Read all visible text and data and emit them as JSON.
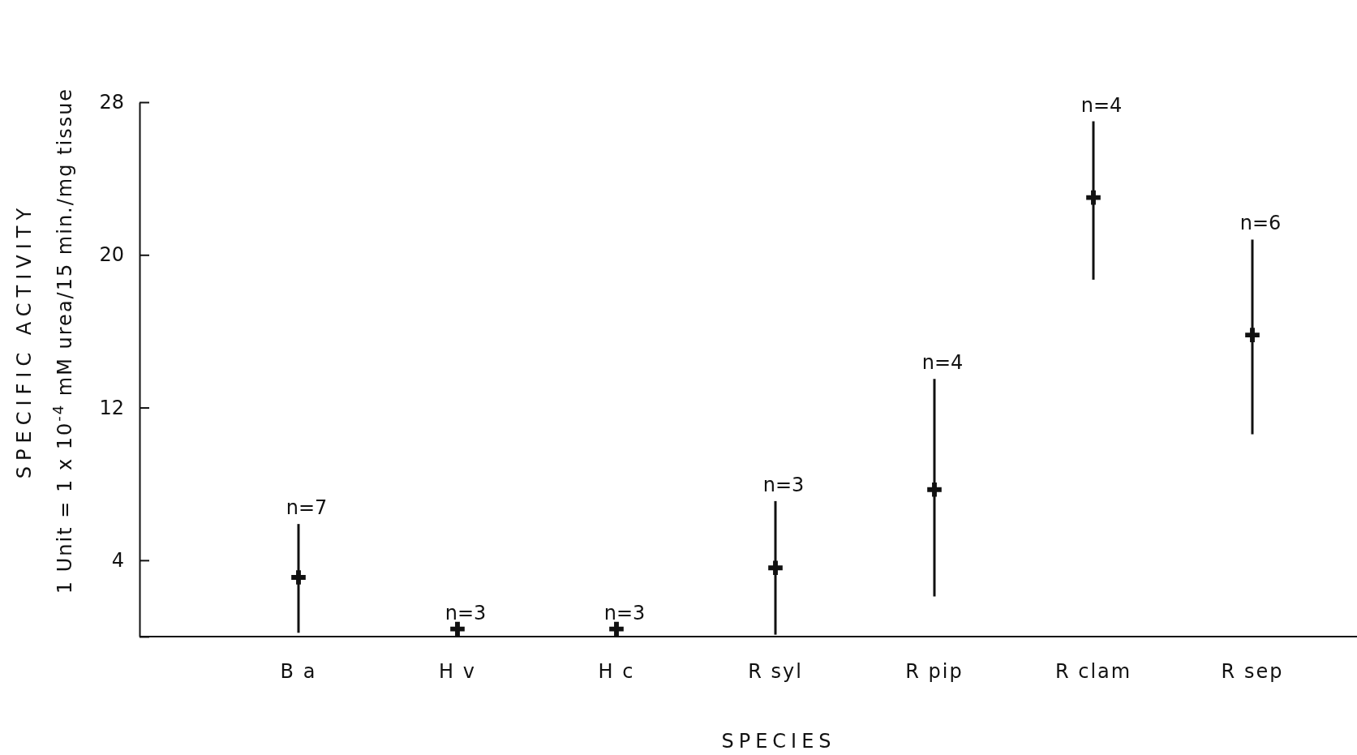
{
  "chart_data": {
    "type": "scatter",
    "xlabel": "SPECIES",
    "ylabel": "SPECIFIC ACTIVITY\n1 Unit = 1 x 10$^{-4}$ mM urea/15 min./mg tissue",
    "categories": [
      "B a",
      "H v",
      "H c",
      "R syl",
      "R pip",
      "R clam",
      "R sep"
    ],
    "series": [
      {
        "color": "#111111",
        "values": [
          3.1,
          0.4,
          0.4,
          3.6,
          7.7,
          23.0,
          15.8
        ],
        "errors": [
          [
            0.2,
            5.9
          ],
          null,
          null,
          [
            0.1,
            7.1
          ],
          [
            2.1,
            13.5
          ],
          [
            18.7,
            27.0
          ],
          [
            10.6,
            20.8
          ]
        ]
      }
    ],
    "ylim": [
      0,
      28
    ],
    "yticks": [
      {
        "value": 0,
        "label": null
      },
      4,
      12,
      20,
      28
    ],
    "marker": "cross",
    "grid": false,
    "annotations": [
      "n=7",
      "n=3",
      "n=3",
      "n=3",
      "n=4",
      "n=4",
      "n=6"
    ]
  }
}
